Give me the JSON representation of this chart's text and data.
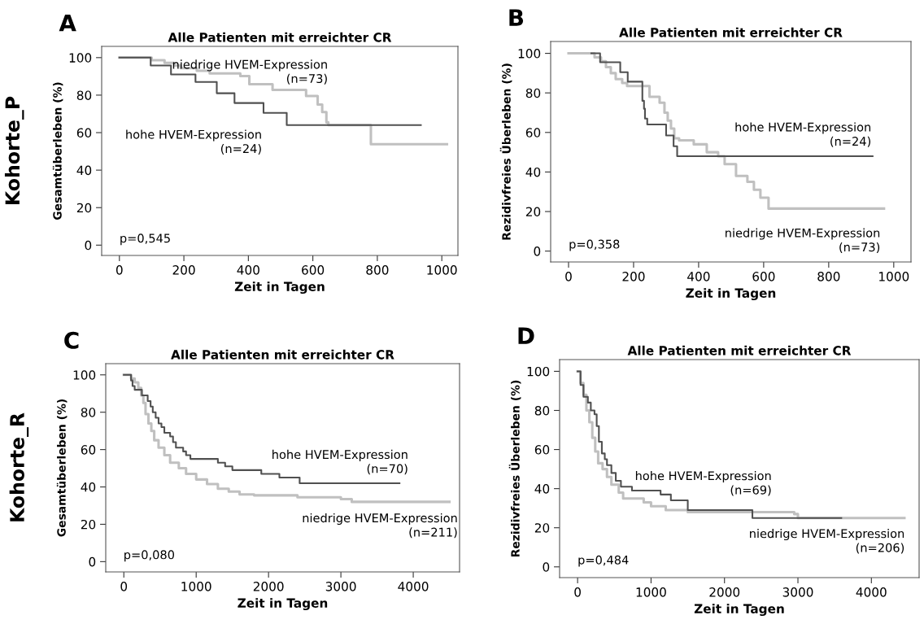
{
  "chart_data": [
    {
      "type": "step",
      "title": "Alle Patienten mit erreichter CR",
      "xlabel": "Zeit in Tagen",
      "ylabel": "Gesamtüberleben (%)",
      "xlim": [
        -55,
        1050
      ],
      "xticks": [
        0,
        200,
        400,
        600,
        800,
        1000
      ],
      "ylim": [
        -5.5,
        106
      ],
      "yticks": [
        0,
        20,
        40,
        60,
        80,
        100
      ],
      "grid": false,
      "legend": false,
      "line_style": "solid",
      "marker": "none",
      "annotations": [
        "A",
        "p=0,545",
        "Kohorte_P"
      ],
      "series": [
        {
          "name": "niedrige HVEM-Expression\n(n=73)",
          "color": "#c0c0c0",
          "x": [
            0,
            100,
            140,
            170,
            190,
            240,
            280,
            375,
            403,
            475,
            579,
            615,
            629,
            642,
            648,
            780,
            1016
          ],
          "values": [
            100,
            98.6,
            97.2,
            95.8,
            94.4,
            93,
            91.6,
            90.2,
            85.8,
            82.8,
            79.5,
            75,
            71,
            65.5,
            64,
            53.8,
            53.8
          ]
        },
        {
          "name": "hohe HVEM-Expression\n(n=24)",
          "color": "#505050",
          "x": [
            0,
            97,
            160,
            236,
            302,
            357,
            447,
            519,
            935
          ],
          "values": [
            100,
            95.8,
            91,
            87,
            81,
            75.8,
            70.5,
            64,
            64
          ]
        }
      ]
    },
    {
      "type": "step",
      "title": "Alle Patienten mit erreichter CR",
      "xlabel": "Zeit in Tagen",
      "ylabel": "Rezidivfreies Überleben (%)",
      "xlim": [
        -55,
        1053
      ],
      "xticks": [
        0,
        200,
        400,
        600,
        800,
        1000
      ],
      "ylim": [
        -5.5,
        106
      ],
      "yticks": [
        0,
        20,
        40,
        60,
        80,
        100
      ],
      "grid": false,
      "legend": false,
      "line_style": "solid",
      "marker": "none",
      "annotations": [
        "B",
        "p=0,358"
      ],
      "series": [
        {
          "name": "niedrige HVEM-Expression\n(n=73)",
          "color": "#c0c0c0",
          "x": [
            0,
            80,
            100,
            115,
            130,
            145,
            165,
            180,
            249,
            280,
            295,
            305,
            315,
            325,
            340,
            385,
            425,
            460,
            480,
            515,
            550,
            570,
            590,
            615,
            970
          ],
          "values": [
            100,
            98,
            96,
            93,
            90,
            87,
            85,
            83.5,
            78,
            75,
            70,
            66,
            62,
            57,
            56,
            54,
            50,
            48,
            44,
            38,
            35,
            31,
            27,
            21.5,
            21.5
          ]
        },
        {
          "name": "hohe HVEM-Expression\n(n=24)",
          "color": "#505050",
          "x": [
            70,
            97,
            159,
            182,
            227,
            232,
            235,
            242,
            300,
            323,
            334,
            935
          ],
          "values": [
            100,
            95.5,
            90.5,
            85.7,
            76,
            72,
            67,
            64,
            58.5,
            53,
            48,
            48
          ]
        }
      ]
    },
    {
      "type": "step",
      "title": "Alle Patienten mit erreichter CR",
      "xlabel": "Zeit in Tagen",
      "ylabel": "Gesamtüberleben (%)",
      "xlim": [
        -250,
        4640
      ],
      "xticks": [
        0,
        1000,
        2000,
        3000,
        4000
      ],
      "ylim": [
        -5.5,
        106
      ],
      "yticks": [
        0,
        20,
        40,
        60,
        80,
        100
      ],
      "grid": false,
      "legend": false,
      "line_style": "solid",
      "marker": "none",
      "annotations": [
        "C",
        "p=0,080",
        "Kohorte_R"
      ],
      "series": [
        {
          "name": "niedrige HVEM-Expression\n(n=211)",
          "color": "#c0c0c0",
          "x": [
            0,
            100,
            150,
            200,
            240,
            270,
            300,
            340,
            380,
            420,
            480,
            560,
            640,
            760,
            860,
            1000,
            1150,
            1300,
            1450,
            1600,
            1800,
            2400,
            3000,
            3150,
            4500
          ],
          "values": [
            100,
            98,
            96,
            93,
            89,
            85,
            79,
            74,
            70,
            65,
            61,
            57,
            53,
            50,
            47,
            44,
            41.5,
            39,
            37.5,
            36,
            35.5,
            34.5,
            33.5,
            32,
            32
          ]
        },
        {
          "name": "hohe HVEM-Expression\n(n=70)",
          "color": "#505050",
          "x": [
            0,
            100,
            120,
            150,
            250,
            330,
            370,
            400,
            440,
            480,
            520,
            560,
            640,
            680,
            720,
            820,
            860,
            920,
            1300,
            1400,
            1500,
            1900,
            2150,
            2430,
            3810
          ],
          "values": [
            100,
            97,
            94,
            92,
            89,
            86,
            83,
            80,
            77,
            74,
            72,
            69,
            67,
            64,
            61,
            59,
            57,
            55,
            53,
            51,
            49,
            47,
            45,
            42,
            42
          ]
        }
      ]
    },
    {
      "type": "step",
      "title": "Alle Patienten mit erreichter CR",
      "xlabel": "Zeit in Tagen",
      "ylabel": "Rezidivfreies Überleben (%)",
      "xlim": [
        -245,
        4650
      ],
      "xticks": [
        0,
        1000,
        2000,
        3000,
        4000
      ],
      "ylim": [
        -5.5,
        106
      ],
      "yticks": [
        0,
        20,
        40,
        60,
        80,
        100
      ],
      "grid": false,
      "legend": false,
      "line_style": "solid",
      "marker": "none",
      "annotations": [
        "D",
        "p=0,484"
      ],
      "series": [
        {
          "name": "niedrige HVEM-Expression\n(n=206)",
          "color": "#c0c0c0",
          "x": [
            0,
            40,
            80,
            120,
            160,
            200,
            240,
            280,
            340,
            400,
            460,
            560,
            620,
            900,
            1000,
            1200,
            1500,
            2300,
            2950,
            3000,
            4450
          ],
          "values": [
            100,
            94,
            88,
            80,
            74,
            66,
            59,
            53,
            50,
            46,
            42,
            38,
            35,
            33,
            31,
            29,
            28,
            28,
            27,
            25,
            25
          ]
        },
        {
          "name": "hohe HVEM-Expression\n(n=69)",
          "color": "#505050",
          "x": [
            0,
            40,
            80,
            140,
            180,
            230,
            260,
            290,
            330,
            370,
            400,
            460,
            520,
            590,
            740,
            1130,
            1270,
            1500,
            2380,
            3590
          ],
          "values": [
            100,
            93,
            87,
            84,
            80,
            78,
            72,
            64,
            58,
            55,
            52,
            48,
            44,
            41,
            39,
            37,
            34,
            29,
            25,
            25
          ]
        }
      ]
    }
  ]
}
